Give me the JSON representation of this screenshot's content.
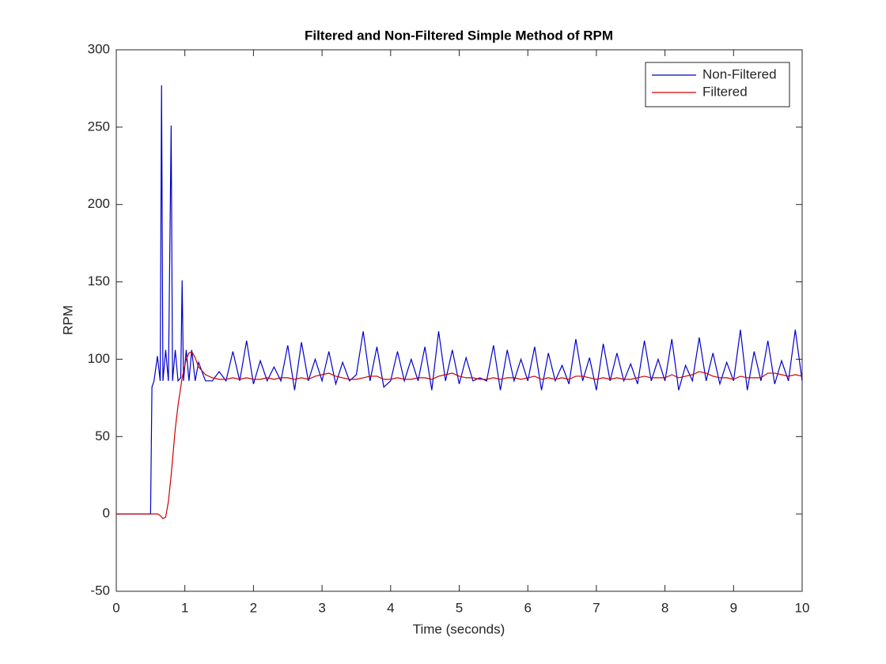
{
  "chart_data": {
    "type": "line",
    "title": "Filtered and Non-Filtered Simple Method of RPM",
    "x_label": "Time (seconds)",
    "y_label": "RPM",
    "x": [
      0,
      0.5,
      0.52,
      0.55,
      0.6,
      0.64,
      0.66,
      0.68,
      0.72,
      0.76,
      0.8,
      0.82,
      0.86,
      0.9,
      0.94,
      0.96,
      0.98,
      1.02,
      1.06,
      1.1,
      1.15,
      1.2,
      1.3,
      1.4,
      1.5,
      1.6,
      1.7,
      1.8,
      1.9,
      2.0,
      2.1,
      2.2,
      2.3,
      2.4,
      2.5,
      2.6,
      2.7,
      2.8,
      2.9,
      3.0,
      3.1,
      3.2,
      3.3,
      3.4,
      3.5,
      3.6,
      3.7,
      3.8,
      3.9,
      4.0,
      4.1,
      4.2,
      4.3,
      4.4,
      4.5,
      4.6,
      4.7,
      4.8,
      4.9,
      5.0,
      5.1,
      5.2,
      5.3,
      5.4,
      5.5,
      5.6,
      5.7,
      5.8,
      5.9,
      6.0,
      6.1,
      6.2,
      6.3,
      6.4,
      6.5,
      6.6,
      6.7,
      6.8,
      6.9,
      7.0,
      7.1,
      7.2,
      7.3,
      7.4,
      7.5,
      7.6,
      7.7,
      7.8,
      7.9,
      8.0,
      8.1,
      8.2,
      8.3,
      8.4,
      8.5,
      8.6,
      8.7,
      8.8,
      8.9,
      9.0,
      9.1,
      9.2,
      9.3,
      9.4,
      9.5,
      9.6,
      9.7,
      9.8,
      9.9,
      10.0
    ],
    "series": [
      {
        "name": "Non-Filtered",
        "color": "#0000cc",
        "values": [
          0,
          0,
          82,
          86,
          102,
          86,
          277,
          86,
          106,
          86,
          251,
          86,
          106,
          86,
          88,
          151,
          86,
          106,
          86,
          106,
          86,
          98,
          86,
          86,
          92,
          86,
          105,
          86,
          112,
          84,
          99,
          86,
          95,
          86,
          109,
          80,
          111,
          86,
          100,
          86,
          105,
          84,
          98,
          86,
          90,
          118,
          86,
          108,
          82,
          86,
          105,
          86,
          100,
          86,
          108,
          80,
          118,
          86,
          106,
          84,
          101,
          86,
          88,
          86,
          109,
          80,
          106,
          86,
          100,
          86,
          108,
          80,
          104,
          86,
          96,
          84,
          113,
          86,
          101,
          80,
          110,
          86,
          104,
          86,
          97,
          84,
          112,
          86,
          100,
          86,
          113,
          80,
          96,
          86,
          114,
          86,
          104,
          84,
          98,
          86,
          119,
          80,
          105,
          86,
          112,
          84,
          99,
          86,
          119,
          86
        ]
      },
      {
        "name": "Filtered",
        "color": "#cc0000",
        "values": [
          0,
          0,
          0,
          0,
          0,
          -1,
          -2,
          -3,
          -2,
          8,
          25,
          35,
          55,
          70,
          82,
          88,
          92,
          100,
          104,
          105,
          101,
          95,
          90,
          88,
          87,
          87,
          88,
          87,
          88,
          87,
          87,
          88,
          87,
          88,
          88,
          87,
          88,
          87,
          89,
          90,
          91,
          89,
          88,
          87,
          87,
          88,
          89,
          89,
          87,
          87,
          88,
          87,
          87,
          88,
          88,
          87,
          89,
          90,
          91,
          89,
          88,
          88,
          87,
          87,
          88,
          87,
          88,
          88,
          87,
          88,
          89,
          87,
          88,
          87,
          88,
          87,
          89,
          89,
          88,
          87,
          88,
          87,
          88,
          87,
          87,
          88,
          89,
          88,
          88,
          88,
          90,
          88,
          89,
          90,
          92,
          91,
          89,
          88,
          88,
          87,
          89,
          88,
          88,
          88,
          91,
          91,
          90,
          89,
          90,
          89
        ]
      }
    ],
    "xlim": [
      0,
      10
    ],
    "xticks": [
      0,
      1,
      2,
      3,
      4,
      5,
      6,
      7,
      8,
      9,
      10
    ],
    "ylim": [
      -50,
      300
    ],
    "yticks": [
      -50,
      0,
      50,
      100,
      150,
      200,
      250,
      300
    ],
    "grid": false,
    "legend": "northeast"
  }
}
